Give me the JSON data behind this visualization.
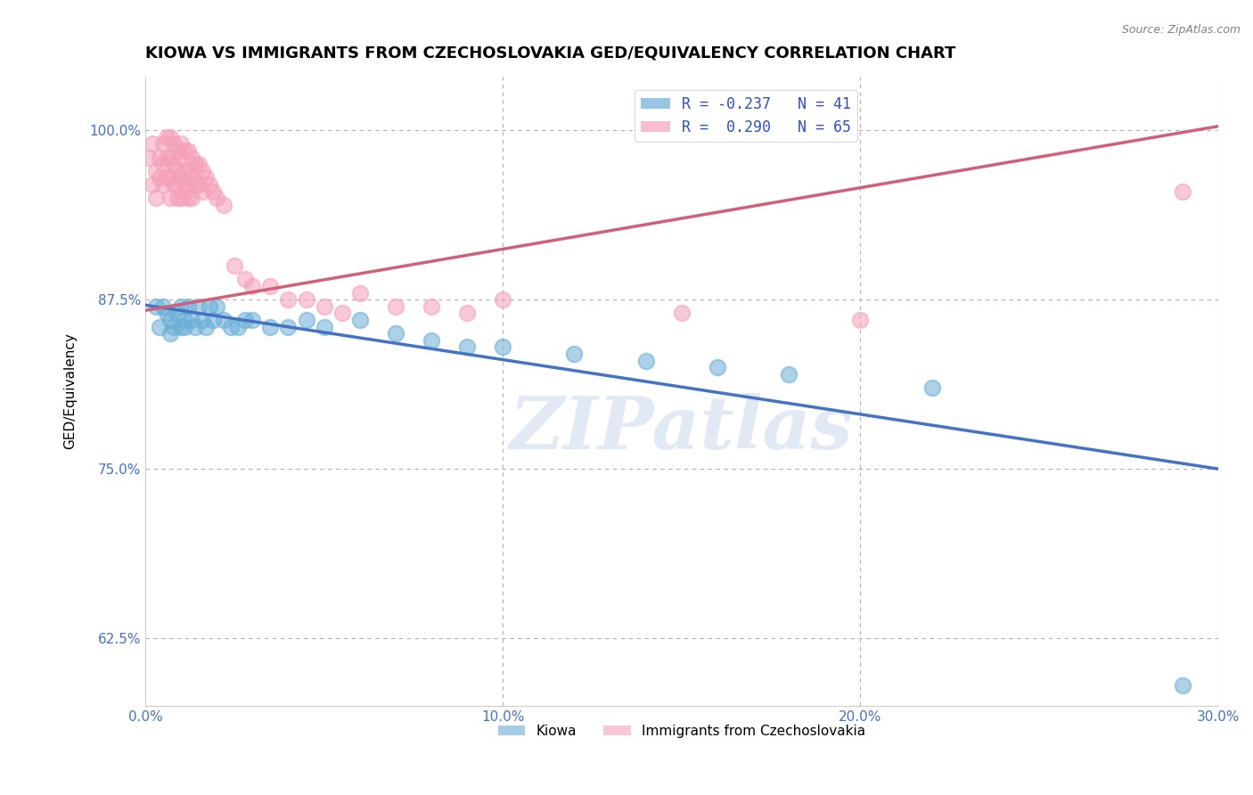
{
  "title": "KIOWA VS IMMIGRANTS FROM CZECHOSLOVAKIA GED/EQUIVALENCY CORRELATION CHART",
  "source": "Source: ZipAtlas.com",
  "ylabel": "GED/Equivalency",
  "xlim": [
    0.0,
    0.3
  ],
  "ylim": [
    0.575,
    1.04
  ],
  "xticks": [
    0.0,
    0.1,
    0.2,
    0.3
  ],
  "xticklabels": [
    "0.0%",
    "10.0%",
    "20.0%",
    "30.0%"
  ],
  "yticks": [
    0.625,
    0.75,
    0.875,
    1.0
  ],
  "yticklabels": [
    "62.5%",
    "75.0%",
    "87.5%",
    "100.0%"
  ],
  "legend_R_blue": "R = -0.237",
  "legend_N_blue": "N = 41",
  "legend_R_pink": "R =  0.290",
  "legend_N_pink": "N = 65",
  "legend_foot": [
    "Kiowa",
    "Immigrants from Czechoslovakia"
  ],
  "blue_scatter_x": [
    0.003,
    0.004,
    0.005,
    0.006,
    0.007,
    0.007,
    0.008,
    0.009,
    0.01,
    0.01,
    0.011,
    0.011,
    0.012,
    0.013,
    0.014,
    0.015,
    0.016,
    0.017,
    0.018,
    0.019,
    0.02,
    0.022,
    0.024,
    0.026,
    0.028,
    0.03,
    0.035,
    0.04,
    0.045,
    0.05,
    0.06,
    0.07,
    0.08,
    0.09,
    0.1,
    0.12,
    0.14,
    0.16,
    0.18,
    0.22,
    0.29
  ],
  "blue_scatter_y": [
    0.87,
    0.855,
    0.87,
    0.865,
    0.86,
    0.85,
    0.855,
    0.865,
    0.87,
    0.855,
    0.86,
    0.855,
    0.87,
    0.86,
    0.855,
    0.87,
    0.86,
    0.855,
    0.87,
    0.86,
    0.87,
    0.86,
    0.855,
    0.855,
    0.86,
    0.86,
    0.855,
    0.855,
    0.86,
    0.855,
    0.86,
    0.85,
    0.845,
    0.84,
    0.84,
    0.835,
    0.83,
    0.825,
    0.82,
    0.81,
    0.59
  ],
  "pink_scatter_x": [
    0.001,
    0.002,
    0.002,
    0.003,
    0.003,
    0.004,
    0.004,
    0.005,
    0.005,
    0.005,
    0.006,
    0.006,
    0.006,
    0.007,
    0.007,
    0.007,
    0.007,
    0.008,
    0.008,
    0.008,
    0.009,
    0.009,
    0.009,
    0.009,
    0.01,
    0.01,
    0.01,
    0.01,
    0.011,
    0.011,
    0.011,
    0.012,
    0.012,
    0.012,
    0.012,
    0.013,
    0.013,
    0.013,
    0.014,
    0.014,
    0.015,
    0.015,
    0.016,
    0.016,
    0.017,
    0.018,
    0.019,
    0.02,
    0.022,
    0.025,
    0.028,
    0.03,
    0.035,
    0.04,
    0.045,
    0.05,
    0.055,
    0.06,
    0.07,
    0.08,
    0.09,
    0.1,
    0.15,
    0.2,
    0.29
  ],
  "pink_scatter_y": [
    0.98,
    0.99,
    0.96,
    0.97,
    0.95,
    0.98,
    0.965,
    0.99,
    0.975,
    0.96,
    0.995,
    0.98,
    0.965,
    0.995,
    0.98,
    0.965,
    0.95,
    0.99,
    0.975,
    0.96,
    0.985,
    0.97,
    0.96,
    0.95,
    0.99,
    0.98,
    0.965,
    0.95,
    0.985,
    0.97,
    0.955,
    0.985,
    0.97,
    0.96,
    0.95,
    0.98,
    0.965,
    0.95,
    0.975,
    0.96,
    0.975,
    0.96,
    0.97,
    0.955,
    0.965,
    0.96,
    0.955,
    0.95,
    0.945,
    0.9,
    0.89,
    0.885,
    0.885,
    0.875,
    0.875,
    0.87,
    0.865,
    0.88,
    0.87,
    0.87,
    0.865,
    0.875,
    0.865,
    0.86,
    0.955
  ],
  "blue_line_x": [
    0.0,
    0.3
  ],
  "blue_line_y": [
    0.871,
    0.75
  ],
  "pink_line_x": [
    0.0,
    0.3
  ],
  "pink_line_y": [
    0.867,
    1.003
  ],
  "blue_color": "#6aaed6",
  "pink_color": "#f4a0b8",
  "blue_line_color": "#4472c4",
  "pink_line_color": "#d0607a",
  "grid_color": "#b0b0b0",
  "watermark_text": "ZIPatlas",
  "title_fontsize": 13,
  "axis_label_fontsize": 11,
  "tick_fontsize": 11,
  "tick_color": "#4472c4"
}
